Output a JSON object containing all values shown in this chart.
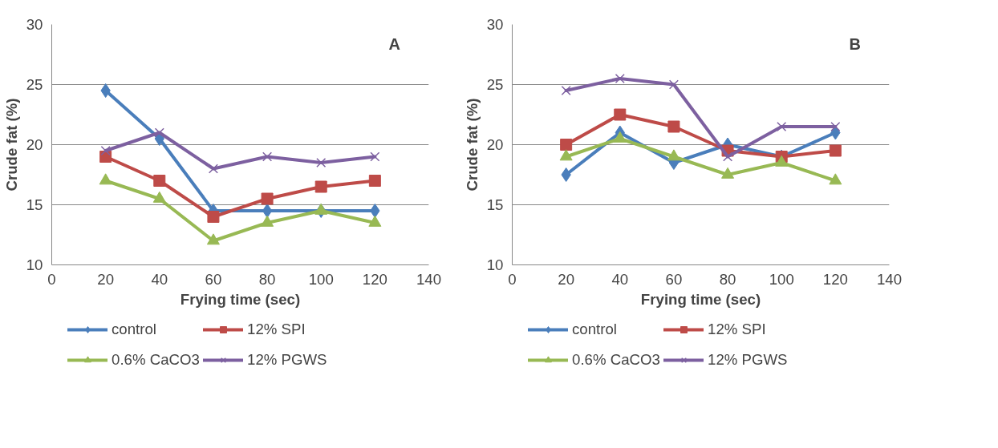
{
  "chart_data": [
    {
      "type": "line",
      "annotations": [
        "A"
      ],
      "xlabel": "Frying time (sec)",
      "ylabel": "Crude fat (%)",
      "x": [
        20,
        40,
        60,
        80,
        100,
        120
      ],
      "xlim": [
        0,
        140
      ],
      "xticks": [
        0,
        20,
        40,
        60,
        80,
        100,
        120,
        140
      ],
      "ylim": [
        10,
        30
      ],
      "yticks": [
        10,
        15,
        20,
        25,
        30
      ],
      "grid": "y",
      "legend": "bottom",
      "line_style": "solid",
      "series": [
        {
          "name": "control",
          "color": "#4a7ebb",
          "marker": "diamond",
          "values": [
            24.5,
            20.5,
            14.5,
            14.5,
            14.5,
            14.5
          ]
        },
        {
          "name": "12% SPI",
          "color": "#be4b48",
          "marker": "square",
          "values": [
            19,
            17,
            14,
            15.5,
            16.5,
            17
          ]
        },
        {
          "name": "0.6% CaCO3",
          "color": "#98b954",
          "marker": "triangle",
          "values": [
            17,
            15.5,
            12,
            13.5,
            14.5,
            13.5
          ]
        },
        {
          "name": "12% PGWS",
          "color": "#7d60a0",
          "marker": "cross",
          "values": [
            19.5,
            21,
            18,
            19,
            18.5,
            19
          ]
        }
      ]
    },
    {
      "type": "line",
      "annotations": [
        "B"
      ],
      "xlabel": "Frying time (sec)",
      "ylabel": "Crude fat (%)",
      "x": [
        20,
        40,
        60,
        80,
        100,
        120
      ],
      "xlim": [
        0,
        140
      ],
      "xticks": [
        0,
        20,
        40,
        60,
        80,
        100,
        120,
        140
      ],
      "ylim": [
        10,
        30
      ],
      "yticks": [
        10,
        15,
        20,
        25,
        30
      ],
      "grid": "y",
      "legend": "bottom",
      "line_style": "solid",
      "series": [
        {
          "name": "control",
          "color": "#4a7ebb",
          "marker": "diamond",
          "values": [
            17.5,
            21,
            18.5,
            20,
            19,
            21
          ]
        },
        {
          "name": "12% SPI",
          "color": "#be4b48",
          "marker": "square",
          "values": [
            20,
            22.5,
            21.5,
            19.5,
            19,
            19.5
          ]
        },
        {
          "name": "0.6% CaCO3",
          "color": "#98b954",
          "marker": "triangle",
          "values": [
            19,
            20.5,
            19,
            17.5,
            18.5,
            17
          ]
        },
        {
          "name": "12% PGWS",
          "color": "#7d60a0",
          "marker": "cross",
          "values": [
            24.5,
            25.5,
            25,
            19,
            21.5,
            21.5
          ]
        }
      ]
    }
  ]
}
